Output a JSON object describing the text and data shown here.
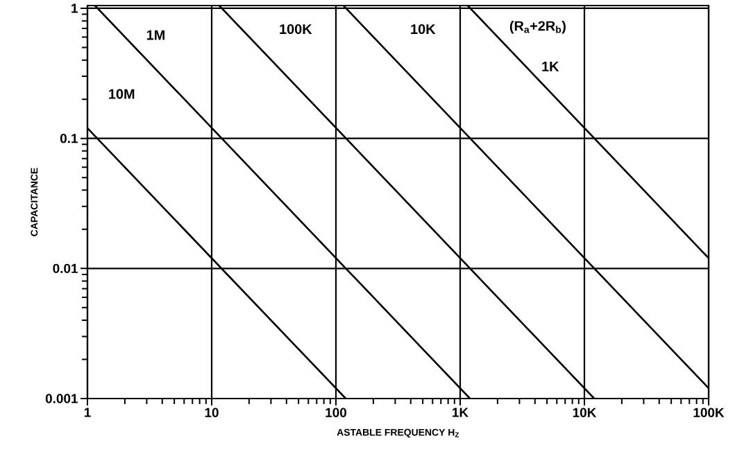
{
  "chart_data": {
    "type": "line",
    "xlabel": "ASTABLE FREQUENCY H$_{Z}$",
    "ylabel": "CAPACITANCE",
    "log": "xy",
    "grid": true,
    "xlim": [
      1,
      100000
    ],
    "ylim": [
      0.001,
      1.05
    ],
    "xticks": [
      1,
      {
        "value": 2,
        "label": null
      },
      {
        "value": 3,
        "label": null
      },
      {
        "value": 4,
        "label": null
      },
      {
        "value": 5,
        "label": null
      },
      {
        "value": 6,
        "label": null
      },
      {
        "value": 7,
        "label": null
      },
      {
        "value": 8,
        "label": null
      },
      {
        "value": 9,
        "label": null
      },
      10,
      {
        "value": 20,
        "label": null
      },
      {
        "value": 30,
        "label": null
      },
      {
        "value": 40,
        "label": null
      },
      {
        "value": 50,
        "label": null
      },
      {
        "value": 60,
        "label": null
      },
      {
        "value": 70,
        "label": null
      },
      {
        "value": 80,
        "label": null
      },
      {
        "value": 90,
        "label": null
      },
      100,
      {
        "value": 200,
        "label": null
      },
      {
        "value": 300,
        "label": null
      },
      {
        "value": 400,
        "label": null
      },
      {
        "value": 500,
        "label": null
      },
      {
        "value": 600,
        "label": null
      },
      {
        "value": 700,
        "label": null
      },
      {
        "value": 800,
        "label": null
      },
      {
        "value": 900,
        "label": null
      },
      {
        "value": 1000,
        "label": "1K"
      },
      {
        "value": 2000,
        "label": null
      },
      {
        "value": 3000,
        "label": null
      },
      {
        "value": 4000,
        "label": null
      },
      {
        "value": 5000,
        "label": null
      },
      {
        "value": 6000,
        "label": null
      },
      {
        "value": 7000,
        "label": null
      },
      {
        "value": 8000,
        "label": null
      },
      {
        "value": 9000,
        "label": null
      },
      {
        "value": 10000,
        "label": "10K"
      },
      {
        "value": 20000,
        "label": null
      },
      {
        "value": 30000,
        "label": null
      },
      {
        "value": 40000,
        "label": null
      },
      {
        "value": 50000,
        "label": null
      },
      {
        "value": 60000,
        "label": null
      },
      {
        "value": 70000,
        "label": null
      },
      {
        "value": 80000,
        "label": null
      },
      {
        "value": 90000,
        "label": null
      },
      {
        "value": 100000,
        "label": "100K"
      }
    ],
    "yticks": [
      0.001,
      {
        "value": 0.002,
        "label": null
      },
      {
        "value": 0.003,
        "label": null
      },
      {
        "value": 0.004,
        "label": null
      },
      {
        "value": 0.005,
        "label": null
      },
      {
        "value": 0.006,
        "label": null
      },
      {
        "value": 0.007,
        "label": null
      },
      {
        "value": 0.008,
        "label": null
      },
      {
        "value": 0.009,
        "label": null
      },
      0.01,
      {
        "value": 0.02,
        "label": null
      },
      {
        "value": 0.03,
        "label": null
      },
      {
        "value": 0.04,
        "label": null
      },
      {
        "value": 0.05,
        "label": null
      },
      {
        "value": 0.06,
        "label": null
      },
      {
        "value": 0.07,
        "label": null
      },
      {
        "value": 0.08,
        "label": null
      },
      {
        "value": 0.09,
        "label": null
      },
      0.1,
      {
        "value": 0.2,
        "label": null
      },
      {
        "value": 0.3,
        "label": null
      },
      {
        "value": 0.4,
        "label": null
      },
      {
        "value": 0.5,
        "label": null
      },
      {
        "value": 0.6,
        "label": null
      },
      {
        "value": 0.7,
        "label": null
      },
      {
        "value": 0.8,
        "label": null
      },
      {
        "value": 0.9,
        "label": null
      },
      1
    ],
    "series": [
      {
        "color": "#000000",
        "x": [
          1,
          120
        ],
        "values": [
          0.12,
          0.001
        ]
      },
      {
        "color": "#000000",
        "x": [
          1.15,
          1200
        ],
        "values": [
          1.05,
          0.001
        ]
      },
      {
        "color": "#000000",
        "x": [
          11.5,
          12000
        ],
        "values": [
          1.05,
          0.001
        ]
      },
      {
        "color": "#000000",
        "x": [
          115,
          100000
        ],
        "values": [
          1.05,
          0.0012
        ]
      },
      {
        "color": "#000000",
        "x": [
          1150,
          100000
        ],
        "values": [
          1.05,
          0.012
        ]
      }
    ],
    "annotations": [
      "10M",
      "1M",
      "100K",
      "10K",
      "(R$_{a}$+2R$_{b}$)",
      "1K"
    ]
  }
}
